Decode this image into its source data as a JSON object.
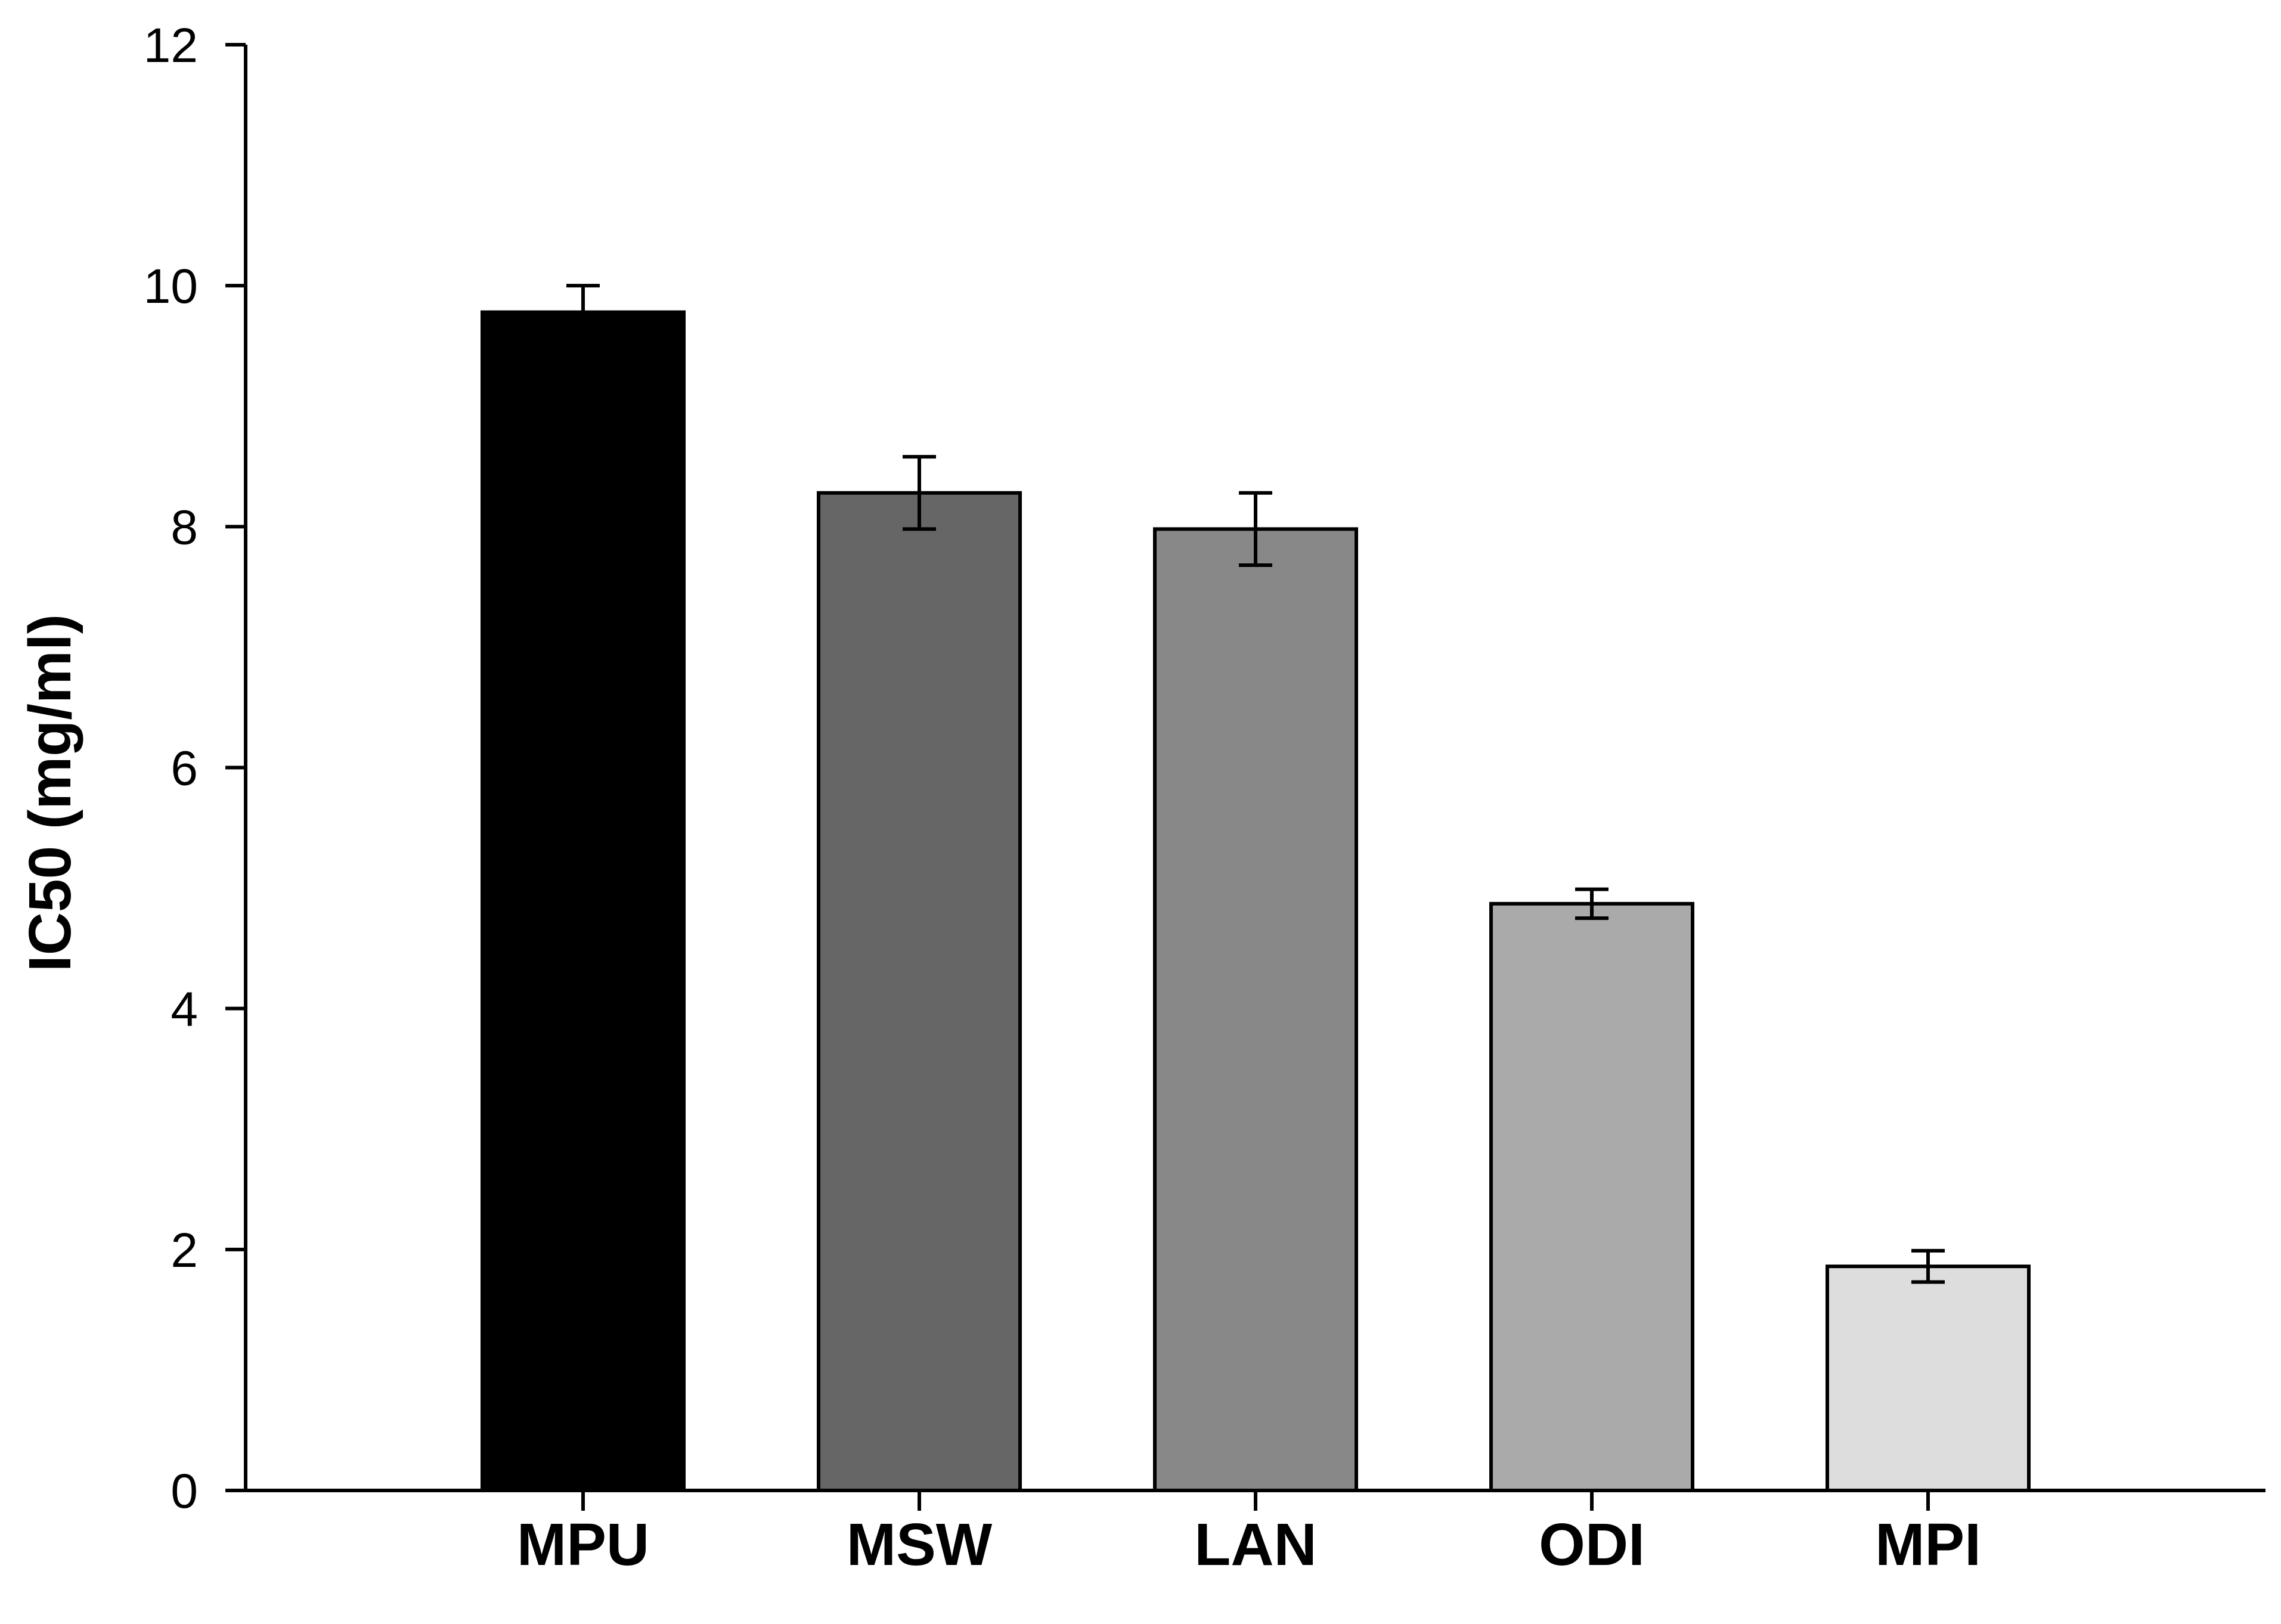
{
  "chart_data": {
    "type": "bar",
    "title": "",
    "xlabel": "",
    "ylabel": "IC50 (mg/ml)",
    "ylim": [
      0,
      12
    ],
    "yticks": [
      0,
      2,
      4,
      6,
      8,
      10,
      12
    ],
    "grid": false,
    "categories": [
      "MPU",
      "MSW",
      "LAN",
      "ODI",
      "MPI"
    ],
    "values": [
      9.78,
      8.28,
      7.98,
      4.87,
      1.86
    ],
    "errors": [
      0.22,
      0.3,
      0.3,
      0.12,
      0.13
    ],
    "colors": [
      "#000000",
      "#666666",
      "#888888",
      "#aaaaaa",
      "#dddddd"
    ]
  }
}
